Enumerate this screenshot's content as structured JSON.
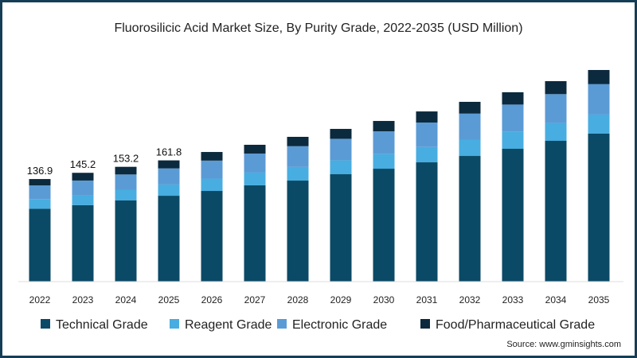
{
  "chart_data": {
    "type": "bar",
    "stacked": true,
    "title": "Fluorosilicic Acid Market Size, By Purity Grade, 2022-2035 (USD Million)",
    "xlabel": "",
    "ylabel": "",
    "ylim": [
      0,
      300
    ],
    "grid": false,
    "legend_position": "bottom",
    "categories": [
      "2022",
      "2023",
      "2024",
      "2025",
      "2026",
      "2027",
      "2028",
      "2029",
      "2030",
      "2031",
      "2032",
      "2033",
      "2034",
      "2035"
    ],
    "series": [
      {
        "name": "Technical Grade",
        "color": "#0b4a66",
        "values": [
          97.2,
          102.0,
          108.3,
          114.6,
          121.0,
          128.5,
          134.8,
          143.3,
          150.7,
          159.2,
          167.7,
          177.3,
          187.9,
          197.5
        ]
      },
      {
        "name": "Reagent Grade",
        "color": "#48ade0",
        "values": [
          13.0,
          13.1,
          14.3,
          15.0,
          16.5,
          17.0,
          18.2,
          18.5,
          19.5,
          20.5,
          21.8,
          22.5,
          23.8,
          25.5
        ]
      },
      {
        "name": "Electronic Grade",
        "color": "#5b9bd5",
        "values": [
          18.2,
          19.8,
          20.4,
          21.5,
          24.0,
          25.4,
          27.7,
          28.8,
          30.4,
          32.6,
          34.7,
          36.5,
          38.5,
          40.5
        ]
      },
      {
        "name": "Food/Pharmaceutical Grade",
        "color": "#0c2a3d",
        "values": [
          8.5,
          10.3,
          10.2,
          10.7,
          11.5,
          11.7,
          12.5,
          13.2,
          13.8,
          14.8,
          15.7,
          16.4,
          17.3,
          18.9
        ]
      }
    ],
    "total_labels": [
      "136.9",
      "145.2",
      "153.2",
      "161.8"
    ],
    "source": "Source: www.gminsights.com"
  }
}
